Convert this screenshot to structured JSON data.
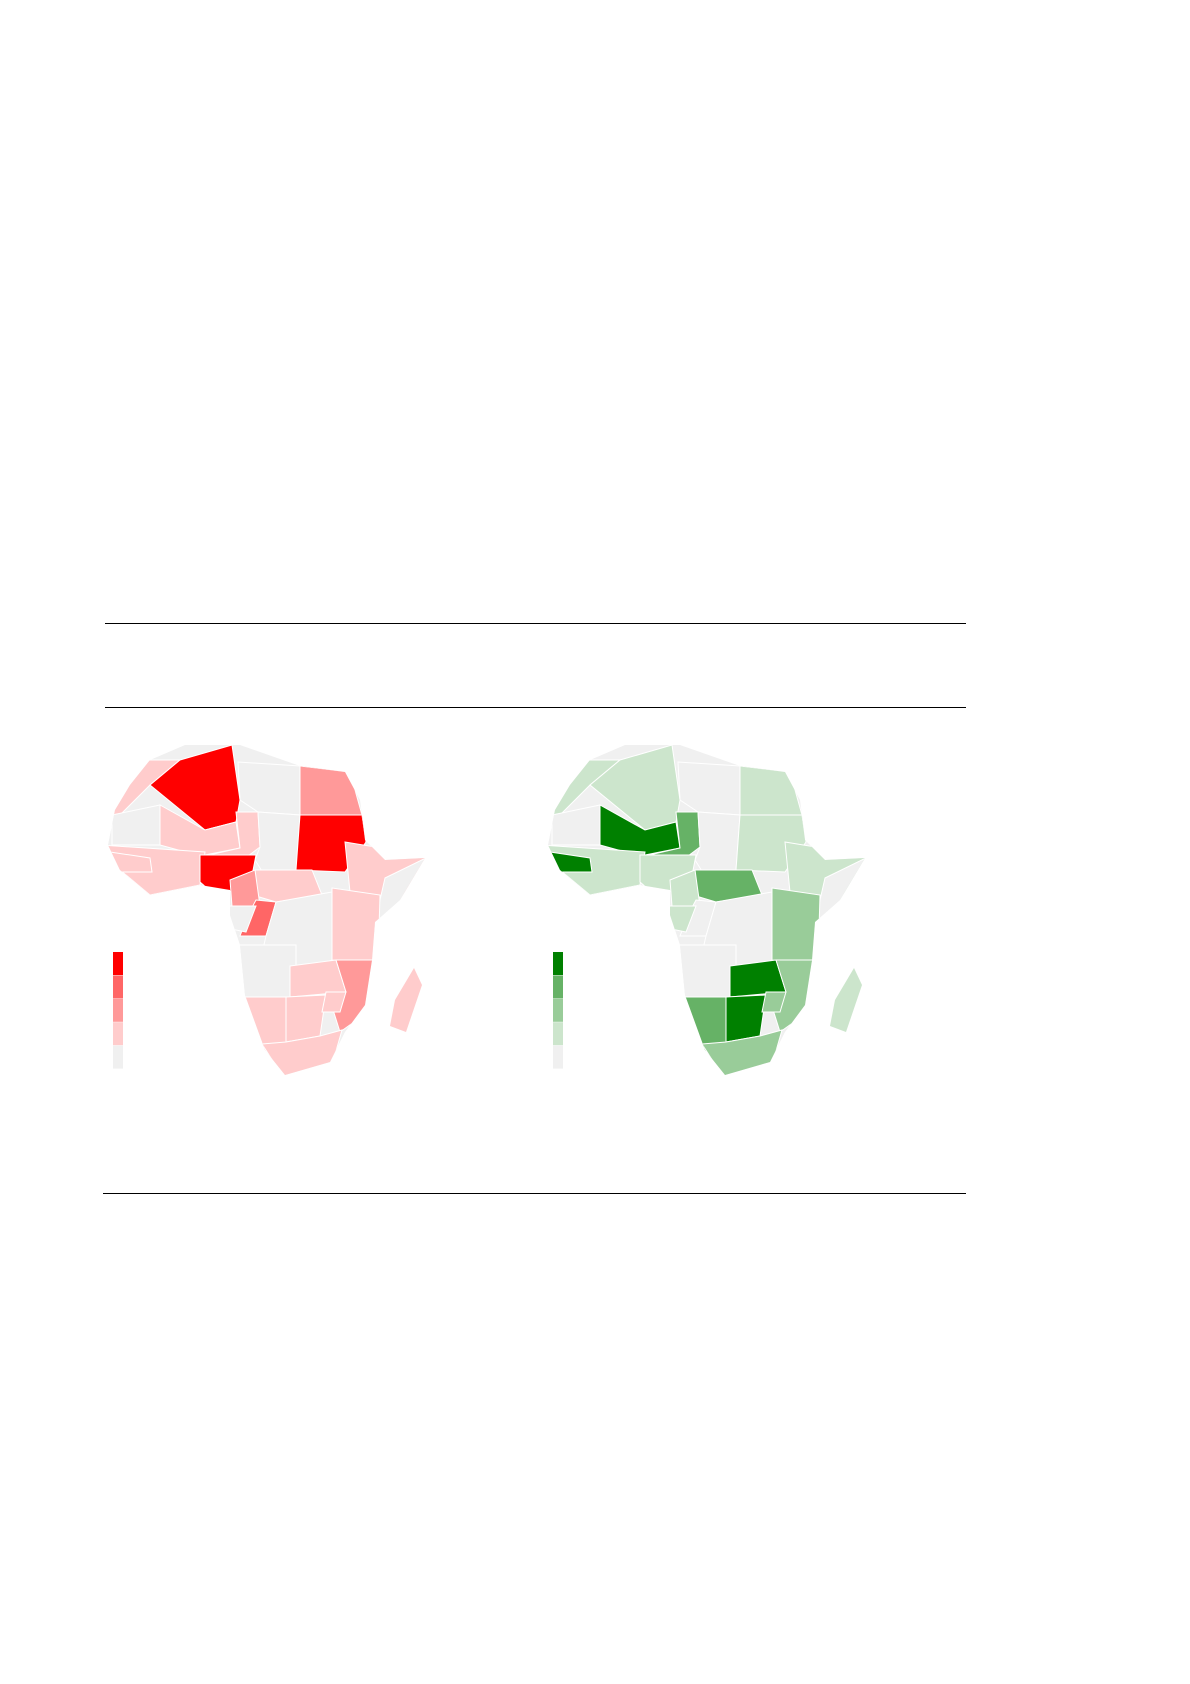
{
  "chart_data": [
    {
      "type": "choropleth",
      "region": "Africa",
      "palette": [
        "#f0f0f0",
        "#ffcccc",
        "#ff9999",
        "#ff6666",
        "#ff0000"
      ],
      "legend_levels": 5,
      "regions": {
        "algeria": 4,
        "morocco": 1,
        "mauritania": 0,
        "libya": 0,
        "egypt": 2,
        "mali": 1,
        "niger": 1,
        "chad": 0,
        "sudan": 4,
        "ethiopia": 1,
        "somalia": 0,
        "west_coast": 1,
        "guinea": 1,
        "nigeria": 4,
        "car": 1,
        "cameroon": 2,
        "congo": 3,
        "gabon": 0,
        "drc": 0,
        "east_africa": 1,
        "angola": 0,
        "zambia": 1,
        "mozambique": 2,
        "namibia": 1,
        "botswana": 1,
        "zimbabwe": 1,
        "south_africa": 1,
        "madagascar": 1
      }
    },
    {
      "type": "choropleth",
      "region": "Africa",
      "palette": [
        "#f0f0f0",
        "#cce5cc",
        "#99cc99",
        "#66b266",
        "#008000"
      ],
      "legend_levels": 5,
      "regions": {
        "algeria": 1,
        "morocco": 1,
        "mauritania": 0,
        "libya": 0,
        "egypt": 1,
        "mali": 4,
        "niger": 3,
        "chad": 0,
        "sudan": 1,
        "ethiopia": 1,
        "somalia": 0,
        "west_coast": 1,
        "guinea": 4,
        "nigeria": 1,
        "car": 3,
        "cameroon": 1,
        "congo": 0,
        "gabon": 1,
        "drc": 0,
        "east_africa": 2,
        "angola": 0,
        "zambia": 4,
        "mozambique": 2,
        "namibia": 3,
        "botswana": 4,
        "zimbabwe": 2,
        "south_africa": 2,
        "madagascar": 1
      }
    }
  ]
}
